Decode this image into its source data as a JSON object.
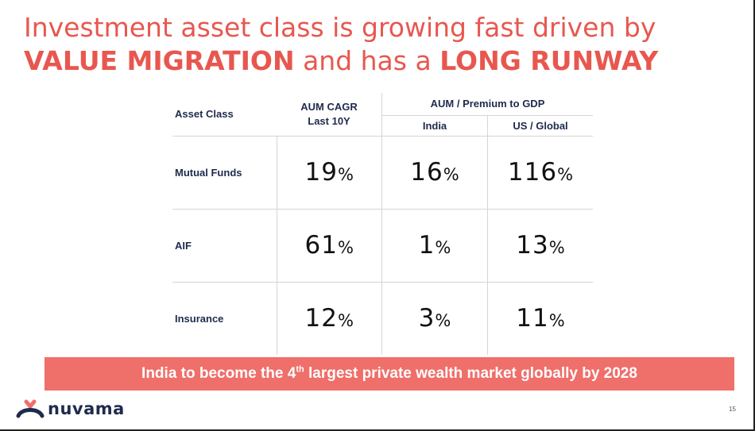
{
  "title": {
    "line1": "Investment asset class is growing fast driven by",
    "line2_bold1": "VALUE MIGRATION",
    "line2_mid": " and has a ",
    "line2_bold2": "LONG RUNWAY"
  },
  "table": {
    "headers": {
      "asset_class": "Asset Class",
      "cagr_line1": "AUM CAGR",
      "cagr_line2": "Last 10Y",
      "gdp_group": "AUM / Premium to GDP",
      "india": "India",
      "us_global": "US / Global"
    },
    "rows": [
      {
        "label": "Mutual Funds",
        "cagr": "19",
        "india": "16",
        "global": "116"
      },
      {
        "label": "AIF",
        "cagr": "61",
        "india": "1",
        "global": "13"
      },
      {
        "label": "Insurance",
        "cagr": "12",
        "india": "3",
        "global": "11"
      }
    ],
    "pct": "%"
  },
  "banner": {
    "before": "India to become the 4",
    "sup": "th",
    "after": " largest private wealth market globally by 2028"
  },
  "brand": {
    "name": "nuvama",
    "primary_color": "#ef6f6a",
    "text_color": "#1f2b4d"
  },
  "page_number": "15"
}
